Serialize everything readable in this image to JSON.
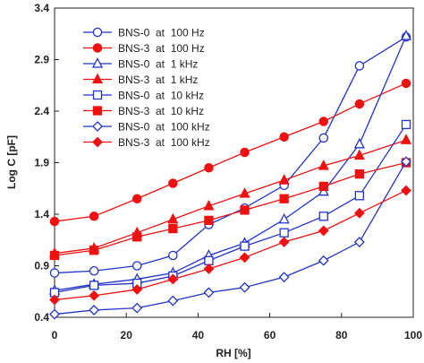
{
  "chart_data": {
    "type": "line",
    "xlabel": "RH [%]",
    "ylabel": "Log C [pF]",
    "xlim": [
      0,
      100
    ],
    "ylim": [
      0.4,
      3.4
    ],
    "xticks": [
      "0",
      "20",
      "40",
      "60",
      "80",
      "100"
    ],
    "yticks": [
      "0.4",
      "0.9",
      "1.4",
      "1.9",
      "2.4",
      "2.9",
      "3.4"
    ],
    "legend_position": "top-left",
    "x": [
      0,
      11,
      23,
      33,
      43,
      53,
      64,
      75,
      85,
      98
    ],
    "series": [
      {
        "name": "BNS-0  at  100 Hz",
        "color": "#2233cc",
        "marker": "circle-open",
        "values": [
          0.83,
          0.85,
          0.9,
          1.0,
          1.3,
          1.46,
          1.68,
          2.14,
          2.84,
          3.12
        ]
      },
      {
        "name": "BNS-3  at  100 Hz",
        "color": "#ee1111",
        "marker": "circle-filled",
        "values": [
          1.33,
          1.38,
          1.55,
          1.7,
          1.85,
          2.0,
          2.15,
          2.3,
          2.47,
          2.67
        ]
      },
      {
        "name": "BNS-0  at  1 kHz",
        "color": "#2233cc",
        "marker": "triangle-open",
        "values": [
          0.66,
          0.72,
          0.77,
          0.83,
          1.0,
          1.12,
          1.35,
          1.62,
          2.08,
          3.13
        ]
      },
      {
        "name": "BNS-3  at  1 kHz",
        "color": "#ee1111",
        "marker": "triangle-filled",
        "values": [
          1.02,
          1.07,
          1.22,
          1.35,
          1.48,
          1.6,
          1.73,
          1.87,
          1.97,
          2.12
        ]
      },
      {
        "name": "BNS-0  at  10 kHz",
        "color": "#2233cc",
        "marker": "square-open",
        "values": [
          0.64,
          0.71,
          0.73,
          0.8,
          0.95,
          1.09,
          1.22,
          1.38,
          1.58,
          2.27
        ]
      },
      {
        "name": "BNS-3  at  10 kHz",
        "color": "#ee1111",
        "marker": "square-filled",
        "values": [
          1.0,
          1.05,
          1.18,
          1.26,
          1.34,
          1.44,
          1.55,
          1.67,
          1.79,
          1.9
        ]
      },
      {
        "name": "BNS-0  at  100 kHz",
        "color": "#2233cc",
        "marker": "diamond-open",
        "values": [
          0.43,
          0.47,
          0.49,
          0.56,
          0.64,
          0.69,
          0.79,
          0.95,
          1.13,
          1.91
        ]
      },
      {
        "name": "BNS-3  at  100 kHz",
        "color": "#ee1111",
        "marker": "diamond-filled",
        "values": [
          0.57,
          0.61,
          0.67,
          0.77,
          0.87,
          0.98,
          1.13,
          1.24,
          1.41,
          1.63
        ]
      }
    ]
  }
}
